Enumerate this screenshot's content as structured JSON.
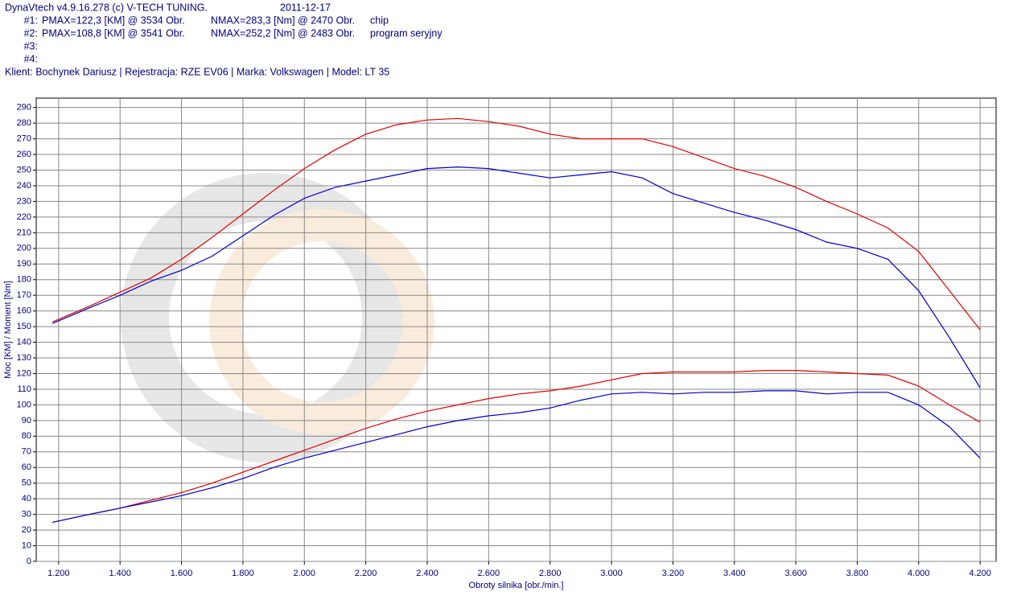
{
  "header": {
    "title": "DynaVtech v4.9.16.278 (c) V-TECH TUNING.",
    "date": "2011-12-17",
    "runs": [
      [
        "#1:",
        "PMAX=122,3 [KM] @ 3534 Obr.",
        "NMAX=283,3 [Nm] @ 2470 Obr.",
        "chip"
      ],
      [
        "#2:",
        "PMAX=108,8 [KM] @ 3541 Obr.",
        "NMAX=252,2 [Nm] @ 2483 Obr.",
        "program seryjny"
      ],
      [
        "#3:"
      ],
      [
        "#4:"
      ]
    ],
    "client": "Klient: Bochynek Dariusz | Rejestracja: RZE EV06 | Marka: Volkswagen | Model: LT 35"
  },
  "chart_data": {
    "type": "line",
    "x_label": "Obroty silnika [obr./min.]",
    "y_label": "Moc [KM] / Moment [Nm]",
    "x": [
      1180,
      1300,
      1400,
      1500,
      1600,
      1700,
      1800,
      1900,
      2000,
      2100,
      2200,
      2300,
      2400,
      2500,
      2600,
      2700,
      2800,
      2900,
      3000,
      3100,
      3200,
      3300,
      3400,
      3500,
      3600,
      3700,
      3800,
      3900,
      4000,
      4100,
      4200
    ],
    "series": [
      {
        "color": "#e00000",
        "values": [
          153,
          163,
          172,
          181,
          193,
          207,
          222,
          237,
          251,
          263,
          273,
          279,
          282,
          283,
          281,
          278,
          273,
          270,
          270,
          270,
          265,
          258,
          251,
          246,
          239,
          230,
          222,
          213,
          198,
          173,
          148
        ]
      },
      {
        "color": "#0000c8",
        "values": [
          152,
          162,
          170,
          179,
          186,
          195,
          208,
          221,
          232,
          239,
          243,
          247,
          251,
          252,
          251,
          248,
          245,
          247,
          249,
          245,
          235,
          229,
          223,
          218,
          212,
          204,
          200,
          193,
          173,
          143,
          111
        ]
      },
      {
        "color": "#e00000",
        "values": [
          25,
          30,
          34,
          39,
          44,
          50,
          57,
          64,
          71,
          78,
          85,
          91,
          96,
          100,
          104,
          107,
          109,
          112,
          116,
          120,
          121,
          121,
          121,
          122,
          122,
          121,
          120,
          119,
          112,
          100,
          89
        ]
      },
      {
        "color": "#0000c8",
        "values": [
          25,
          30,
          34,
          38,
          42,
          47,
          53,
          60,
          66,
          71,
          76,
          81,
          86,
          90,
          93,
          95,
          98,
          103,
          107,
          108,
          107,
          108,
          108,
          109,
          109,
          107,
          108,
          108,
          100,
          86,
          66
        ]
      }
    ],
    "xlim": [
      1127,
      4252
    ],
    "ylim": [
      0,
      296
    ],
    "xticks": [
      {
        "value": 1200,
        "label": "1.200"
      },
      {
        "value": 1400,
        "label": "1.400"
      },
      {
        "value": 1600,
        "label": "1.600"
      },
      {
        "value": 1800,
        "label": "1.800"
      },
      {
        "value": 2000,
        "label": "2.000"
      },
      {
        "value": 2200,
        "label": "2.200"
      },
      {
        "value": 2400,
        "label": "2.400"
      },
      {
        "value": 2600,
        "label": "2.600"
      },
      {
        "value": 2800,
        "label": "2.800"
      },
      {
        "value": 3000,
        "label": "3.000"
      },
      {
        "value": 3200,
        "label": "3.200"
      },
      {
        "value": 3400,
        "label": "3.400"
      },
      {
        "value": 3600,
        "label": "3.600"
      },
      {
        "value": 3800,
        "label": "3.800"
      },
      {
        "value": 4000,
        "label": "4.000"
      },
      {
        "value": 4200,
        "label": "4.200"
      }
    ],
    "yticks": [
      0,
      10,
      20,
      30,
      40,
      50,
      60,
      70,
      80,
      90,
      100,
      110,
      120,
      130,
      140,
      150,
      160,
      170,
      180,
      190,
      200,
      210,
      220,
      230,
      240,
      250,
      260,
      270,
      280,
      290
    ],
    "grid": true
  }
}
